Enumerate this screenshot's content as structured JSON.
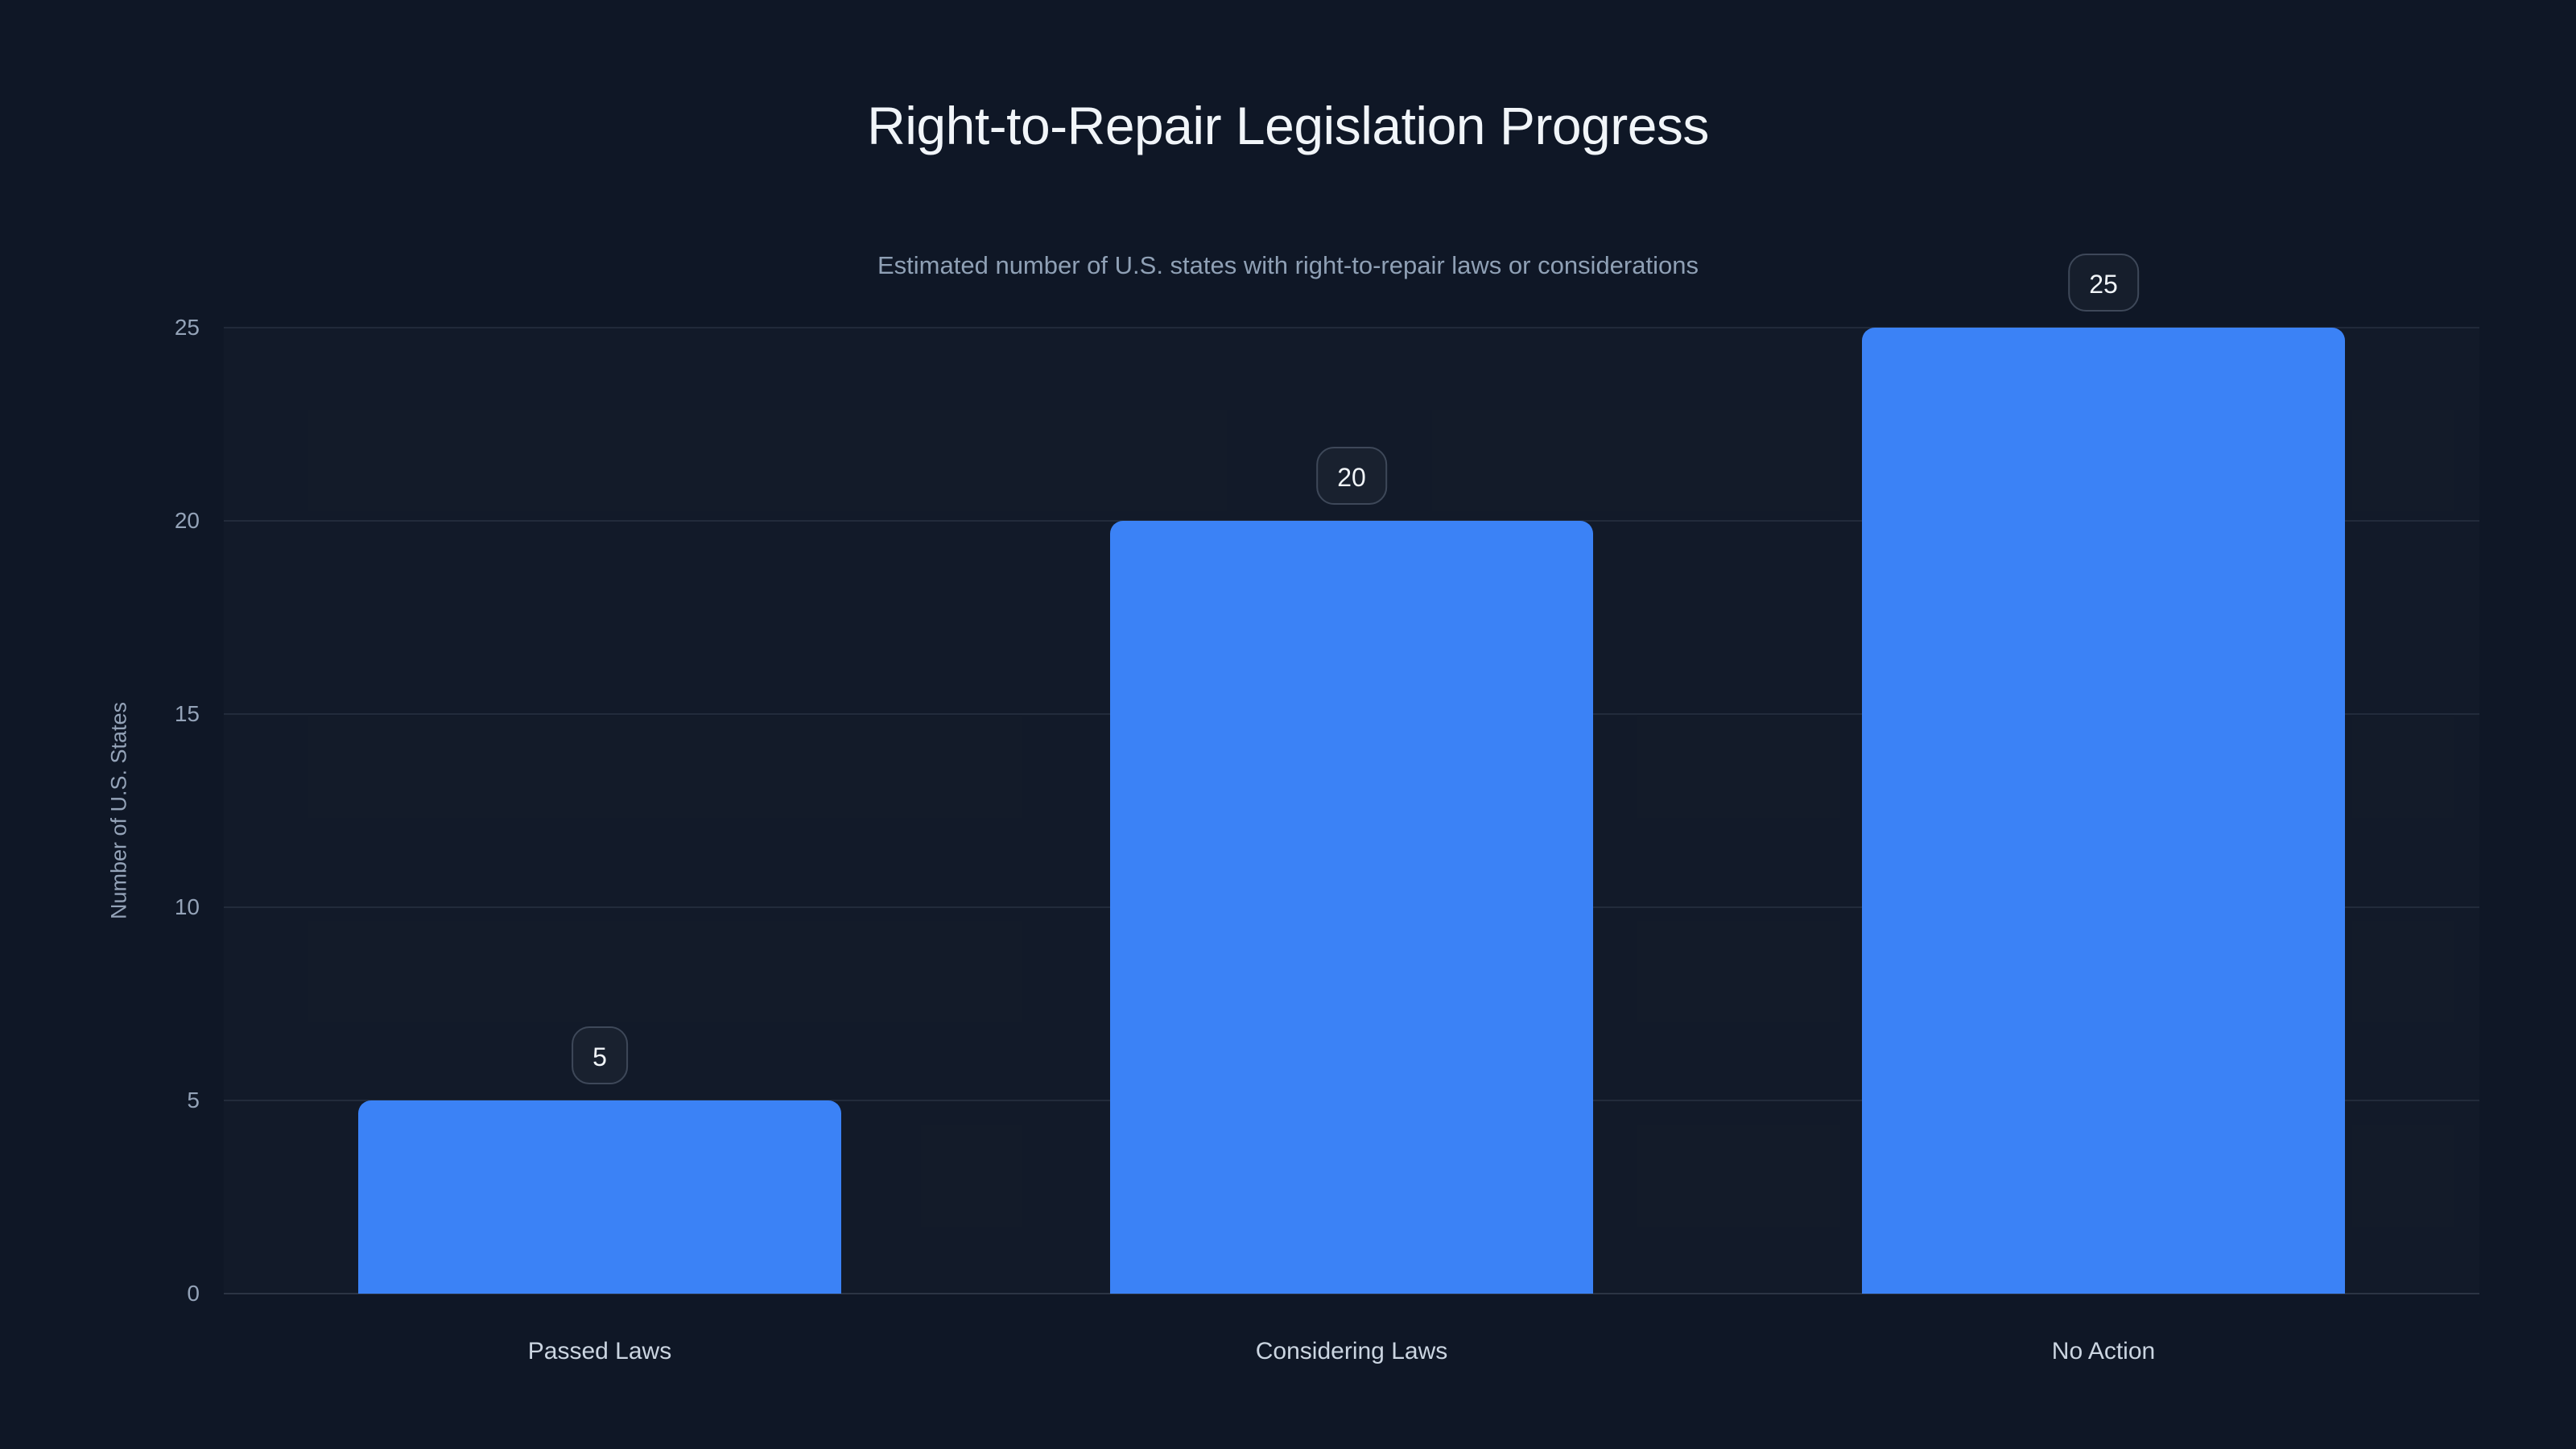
{
  "chart_data": {
    "type": "bar",
    "title": "Right-to-Repair Legislation Progress",
    "subtitle": "Estimated number of U.S. states with right-to-repair laws or considerations",
    "categories": [
      "Passed Laws",
      "Considering Laws",
      "No Action"
    ],
    "values": [
      5,
      20,
      25
    ],
    "value_labels": [
      "5",
      "20",
      "25"
    ],
    "xlabel": "",
    "ylabel": "Number of U.S. States",
    "ylim": [
      0,
      25
    ],
    "yticks": [
      0,
      5,
      10,
      15,
      20,
      25
    ],
    "grid": "horizontal",
    "legend": "none",
    "colors": {
      "background": "#0f1726",
      "bar": "#3b82f6",
      "title_text": "#f1f5f9",
      "subtitle_text": "#8fa0b5",
      "axis_text": "#94a3b8",
      "category_text": "#cbd5e1",
      "badge_border": "#3e4859",
      "badge_text": "#f1f5f9",
      "gridline": "rgba(148,163,184,0.13)"
    }
  }
}
